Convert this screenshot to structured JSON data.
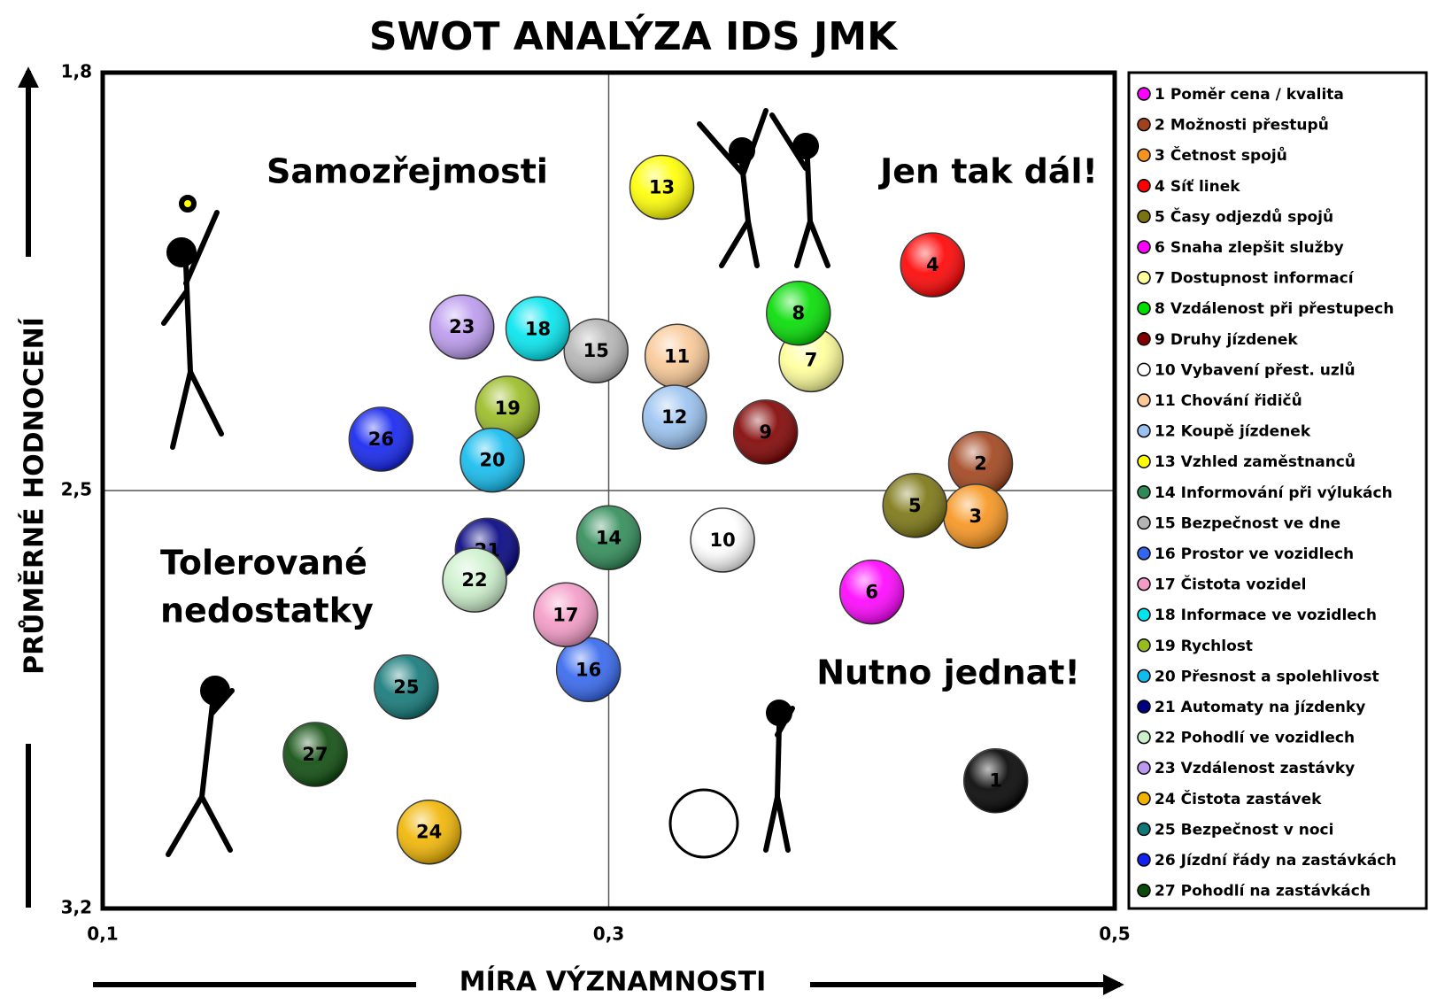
{
  "chart_data": {
    "type": "bubble-scatter",
    "title": "SWOT ANALÝZA IDS JMK",
    "x_label": "MÍRA VÝZNAMNOSTI",
    "y_label": "PRŮMĚRNÉ HODNOCENÍ",
    "xlim": [
      0.1,
      0.5
    ],
    "ylim": [
      1.8,
      3.2
    ],
    "y_inverted": true,
    "xticks": [
      {
        "value": 0.1,
        "label": "0,1"
      },
      {
        "value": 0.3,
        "label": "0,3"
      },
      {
        "value": 0.5,
        "label": "0,5"
      }
    ],
    "yticks": [
      {
        "value": 1.8,
        "label": "1,8"
      },
      {
        "value": 2.5,
        "label": "2,5"
      },
      {
        "value": 3.2,
        "label": "3,2"
      }
    ],
    "annotations": [
      "Samozřejmosti",
      "Jen tak dál!",
      "Tolerované",
      "nedostatky",
      "Nutno jednat!"
    ],
    "legend": "right",
    "series": [
      {
        "id": "1",
        "name": "Poměr cena / kvalita",
        "color": "#ff00ff",
        "bubble_color": "#000000",
        "x": [
          0.453
        ],
        "values": [
          2.986
        ]
      },
      {
        "id": "2",
        "name": "Možnosti přestupů",
        "color": "#a0421a",
        "x": [
          0.447
        ],
        "values": [
          2.455
        ]
      },
      {
        "id": "3",
        "name": "Četnost spojů",
        "color": "#f7941d",
        "x": [
          0.445
        ],
        "values": [
          2.543
        ]
      },
      {
        "id": "4",
        "name": "Síť linek",
        "color": "#ff0000",
        "x": [
          0.428
        ],
        "values": [
          2.122
        ]
      },
      {
        "id": "5",
        "name": "Časy odjezdů spojů",
        "color": "#7a7410",
        "x": [
          0.421
        ],
        "values": [
          2.525
        ]
      },
      {
        "id": "6",
        "name": "Snaha zlepšit služby",
        "color": "#ff00ff",
        "x": [
          0.404
        ],
        "values": [
          2.67
        ]
      },
      {
        "id": "7",
        "name": "Dostupnost informací",
        "color": "#ffff99",
        "x": [
          0.38
        ],
        "values": [
          2.281
        ]
      },
      {
        "id": "8",
        "name": "Vzdálenost při přestupech",
        "color": "#00dd00",
        "x": [
          0.375
        ],
        "values": [
          2.203
        ]
      },
      {
        "id": "9",
        "name": "Druhy jízdenek",
        "color": "#800000",
        "x": [
          0.362
        ],
        "values": [
          2.402
        ]
      },
      {
        "id": "10",
        "name": "Vybavení přest. uzlů",
        "color": "#ffffff",
        "x": [
          0.345
        ],
        "values": [
          2.583
        ]
      },
      {
        "id": "11",
        "name": "Chování řidičů",
        "color": "#f9c896",
        "x": [
          0.327
        ],
        "values": [
          2.275
        ]
      },
      {
        "id": "12",
        "name": "Koupě jízdenek",
        "color": "#99c2f0",
        "x": [
          0.326
        ],
        "values": [
          2.377
        ]
      },
      {
        "id": "13",
        "name": "Vzhled zaměstnanců",
        "color": "#ffff00",
        "x": [
          0.321
        ],
        "values": [
          1.992
        ]
      },
      {
        "id": "14",
        "name": "Informování při výlukách",
        "color": "#2e8b57",
        "x": [
          0.3
        ],
        "values": [
          2.579
        ]
      },
      {
        "id": "15",
        "name": "Bezpečnost ve dne",
        "color": "#b4b4b4",
        "x": [
          0.295
        ],
        "values": [
          2.266
        ]
      },
      {
        "id": "16",
        "name": "Prostor ve vozidlech",
        "color": "#3366ee",
        "x": [
          0.292
        ],
        "values": [
          2.8
        ]
      },
      {
        "id": "17",
        "name": "Čistota vozidel",
        "color": "#f49ac6",
        "x": [
          0.283
        ],
        "values": [
          2.708
        ]
      },
      {
        "id": "18",
        "name": "Informace ve vozidlech",
        "color": "#00e5ee",
        "x": [
          0.272
        ],
        "values": [
          2.229
        ]
      },
      {
        "id": "19",
        "name": "Rychlost",
        "color": "#99bb22",
        "x": [
          0.26
        ],
        "values": [
          2.362
        ]
      },
      {
        "id": "20",
        "name": "Přesnost a spolehlivost",
        "color": "#11bbee",
        "x": [
          0.254
        ],
        "values": [
          2.449
        ]
      },
      {
        "id": "21",
        "name": "Automaty na jízdenky",
        "color": "#000080",
        "x": [
          0.252
        ],
        "values": [
          2.6
        ]
      },
      {
        "id": "22",
        "name": "Pohodlí ve vozidlech",
        "color": "#ccf0cc",
        "x": [
          0.247
        ],
        "values": [
          2.65
        ]
      },
      {
        "id": "23",
        "name": "Vzdálenost zastávky",
        "color": "#bb99ee",
        "x": [
          0.242
        ],
        "values": [
          2.226
        ]
      },
      {
        "id": "24",
        "name": "Čistota zastávek",
        "color": "#f0b400",
        "x": [
          0.229
        ],
        "values": [
          3.072
        ]
      },
      {
        "id": "25",
        "name": "Bezpečnost v noci",
        "color": "#117777",
        "x": [
          0.22
        ],
        "values": [
          2.829
        ]
      },
      {
        "id": "26",
        "name": "Jízdní řády na zastávkách",
        "color": "#1122ee",
        "x": [
          0.21
        ],
        "values": [
          2.414
        ]
      },
      {
        "id": "27",
        "name": "Pohodlí na zastávkách",
        "color": "#0b4a0b",
        "x": [
          0.184
        ],
        "values": [
          2.942
        ]
      }
    ]
  }
}
